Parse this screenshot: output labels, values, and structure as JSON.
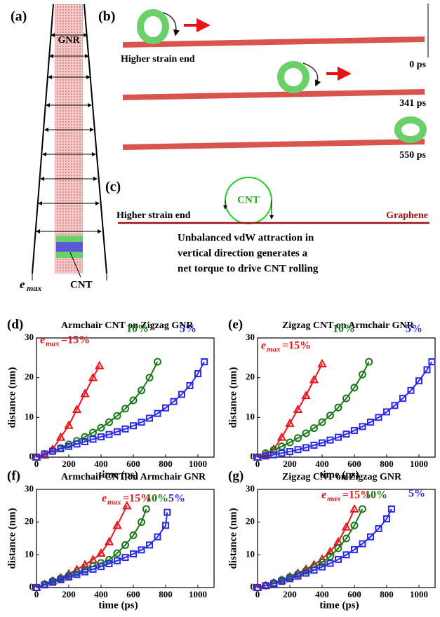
{
  "panels": {
    "a": {
      "label": "(a)",
      "gnr": "GNR",
      "e_symbol": "e",
      "e_subscript": "max",
      "cnt": "CNT"
    },
    "b": {
      "label": "(b)",
      "higher_strain_end": "Higher strain end",
      "times": [
        "0 ps",
        "341 ps",
        "550 ps"
      ]
    },
    "c": {
      "label": "(c)",
      "cnt": "CNT",
      "higher_strain_end": "Higher strain end",
      "graphene": "Graphene",
      "caption": [
        "Unbalanced vdW attraction in",
        "vertical direction generates a",
        "net torque to drive CNT rolling"
      ]
    }
  },
  "chart_data": [
    {
      "type": "line",
      "panel": "(d)",
      "title": "Armchair CNT on Zigzag GNR",
      "x_label": "time (ps)",
      "y_label": "distance (nm)",
      "e_symbol": "e",
      "e_subscript": "max",
      "xlim": [
        0,
        1100
      ],
      "xticks": [
        0,
        200,
        400,
        600,
        800,
        1000
      ],
      "ylim": [
        0,
        30
      ],
      "yticks": [
        0,
        10,
        20,
        30
      ],
      "series": [
        {
          "name": "=15%",
          "color": "#e8141a",
          "marker": "triangle",
          "x": [
            0,
            50,
            100,
            150,
            200,
            250,
            300,
            350,
            390
          ],
          "values": [
            0,
            0.5,
            2,
            5,
            8,
            12,
            16,
            20,
            23
          ]
        },
        {
          "name": "10%",
          "color": "#1a7a1a",
          "marker": "circle",
          "x": [
            0,
            50,
            100,
            150,
            200,
            250,
            300,
            350,
            400,
            450,
            500,
            550,
            600,
            650,
            700,
            750
          ],
          "values": [
            0,
            0.8,
            1.5,
            2.3,
            3.2,
            4.1,
            5.1,
            6.2,
            7.4,
            8.8,
            10.4,
            12.2,
            14.3,
            16.8,
            20,
            24
          ]
        },
        {
          "name": "5%",
          "color": "#2a2ae8",
          "marker": "square",
          "x": [
            0,
            50,
            100,
            150,
            200,
            250,
            300,
            350,
            400,
            450,
            500,
            550,
            600,
            650,
            700,
            750,
            800,
            850,
            900,
            950,
            1000,
            1040
          ],
          "values": [
            0,
            0.8,
            1.5,
            2.1,
            2.7,
            3.3,
            3.9,
            4.5,
            5.1,
            5.7,
            6.4,
            7.1,
            7.9,
            8.8,
            9.8,
            11,
            12.4,
            14,
            15.8,
            18,
            21,
            24
          ]
        }
      ]
    },
    {
      "type": "line",
      "panel": "(e)",
      "title": "Zigzag CNT on Armchair GNR",
      "x_label": "time (ps)",
      "y_label": "distance (nm)",
      "e_symbol": "e",
      "e_subscript": "max",
      "xlim": [
        0,
        1100
      ],
      "xticks": [
        0,
        200,
        400,
        600,
        800,
        1000
      ],
      "ylim": [
        0,
        30
      ],
      "yticks": [
        0,
        10,
        20,
        30
      ],
      "series": [
        {
          "name": "=15%",
          "color": "#e8141a",
          "marker": "triangle",
          "x": [
            0,
            50,
            100,
            150,
            200,
            250,
            300,
            350,
            400
          ],
          "values": [
            0,
            0.5,
            2,
            5,
            8.5,
            12,
            15.5,
            19.5,
            23.5
          ]
        },
        {
          "name": "10%",
          "color": "#1a7a1a",
          "marker": "circle",
          "x": [
            0,
            50,
            100,
            150,
            200,
            250,
            300,
            350,
            400,
            450,
            500,
            550,
            600,
            650,
            690
          ],
          "values": [
            0,
            1,
            1.8,
            2.7,
            3.7,
            4.8,
            6,
            7.3,
            8.8,
            10.5,
            12.5,
            14.8,
            17.5,
            20.8,
            24
          ]
        },
        {
          "name": "5%",
          "color": "#2a2ae8",
          "marker": "square",
          "x": [
            0,
            50,
            100,
            150,
            200,
            250,
            300,
            350,
            400,
            450,
            500,
            550,
            600,
            650,
            700,
            750,
            800,
            850,
            900,
            950,
            1000,
            1050,
            1080
          ],
          "values": [
            0,
            0.3,
            0.6,
            1,
            1.4,
            1.9,
            2.4,
            3,
            3.6,
            4.3,
            5,
            5.8,
            6.7,
            7.7,
            8.8,
            10,
            11.4,
            13,
            14.8,
            16.8,
            19.2,
            22,
            24
          ]
        }
      ]
    },
    {
      "type": "line",
      "panel": "(f)",
      "title": "Armchair CNT on Armchair GNR",
      "x_label": "time (ps)",
      "y_label": "distance (nm)",
      "e_symbol": "e",
      "e_subscript": "max",
      "xlim": [
        0,
        1100
      ],
      "xticks": [
        0,
        200,
        400,
        600,
        800,
        1000
      ],
      "ylim": [
        0,
        30
      ],
      "yticks": [
        0,
        10,
        20,
        30
      ],
      "series": [
        {
          "name": "=15%",
          "color": "#e8141a",
          "marker": "triangle",
          "x": [
            0,
            50,
            100,
            150,
            200,
            250,
            300,
            350,
            400,
            450,
            500,
            560
          ],
          "values": [
            0,
            1,
            2,
            3,
            4.2,
            5.5,
            7,
            8.5,
            10.5,
            14,
            19,
            25
          ]
        },
        {
          "name": "10%",
          "color": "#1a7a1a",
          "marker": "circle",
          "x": [
            0,
            50,
            100,
            150,
            200,
            250,
            300,
            350,
            400,
            450,
            500,
            550,
            600,
            650,
            680
          ],
          "values": [
            0,
            1,
            2,
            2.8,
            3.7,
            4.6,
            5.5,
            6.5,
            7.5,
            8.5,
            10.5,
            13,
            16,
            20,
            24
          ]
        },
        {
          "name": "5%",
          "color": "#2a2ae8",
          "marker": "square",
          "x": [
            0,
            50,
            100,
            150,
            200,
            250,
            300,
            350,
            400,
            450,
            500,
            550,
            600,
            650,
            700,
            750,
            800,
            810
          ],
          "values": [
            0,
            0.8,
            1.6,
            2.4,
            3.2,
            4,
            4.8,
            5.6,
            6.4,
            7.3,
            8.2,
            9.2,
            10.3,
            11.5,
            13,
            15.5,
            19,
            23
          ]
        }
      ]
    },
    {
      "type": "line",
      "panel": "(g)",
      "title": "Zigzag CNT on Zigzag GNR",
      "x_label": "time (ps)",
      "y_label": "distance (nm)",
      "e_symbol": "e",
      "e_subscript": "max",
      "xlim": [
        0,
        1100
      ],
      "xticks": [
        0,
        200,
        400,
        600,
        800,
        1000
      ],
      "ylim": [
        0,
        30
      ],
      "yticks": [
        0,
        10,
        20,
        30
      ],
      "series": [
        {
          "name": "=15%",
          "color": "#e8141a",
          "marker": "triangle",
          "x": [
            0,
            50,
            100,
            150,
            200,
            250,
            300,
            350,
            400,
            450,
            500,
            550,
            600
          ],
          "values": [
            0,
            0.6,
            1.4,
            2.3,
            3.3,
            4.4,
            5.6,
            7,
            8.7,
            11,
            14,
            18.5,
            24
          ]
        },
        {
          "name": "10%",
          "color": "#1a7a1a",
          "marker": "circle",
          "x": [
            0,
            50,
            100,
            150,
            200,
            250,
            300,
            350,
            400,
            450,
            500,
            550,
            600,
            650
          ],
          "values": [
            0,
            0.6,
            1.4,
            2.3,
            3.2,
            4.1,
            5.1,
            6.3,
            7.7,
            9.5,
            12,
            15,
            19,
            24
          ]
        },
        {
          "name": "5%",
          "color": "#2a2ae8",
          "marker": "square",
          "x": [
            0,
            50,
            100,
            150,
            200,
            250,
            300,
            350,
            400,
            450,
            500,
            550,
            600,
            650,
            700,
            750,
            800,
            830
          ],
          "values": [
            0,
            0.6,
            1.2,
            1.9,
            2.7,
            3.5,
            4.4,
            5.3,
            6.3,
            7.4,
            8.6,
            10,
            11.6,
            13.4,
            15.5,
            18,
            21,
            24
          ]
        }
      ]
    }
  ]
}
